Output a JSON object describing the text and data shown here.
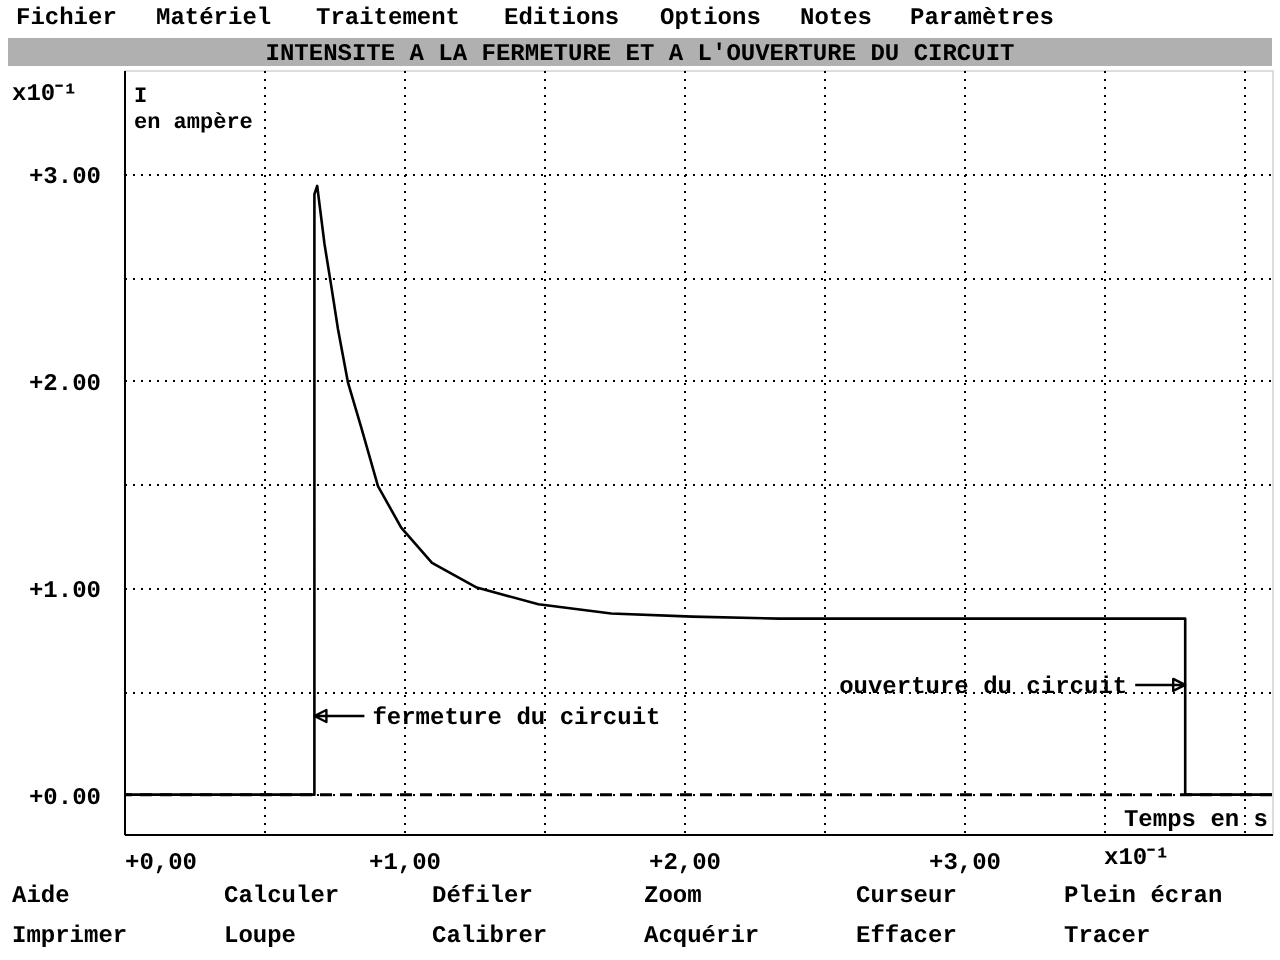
{
  "chart_data": {
    "type": "line",
    "title": "INTENSITE A LA FERMETURE ET A L'OUVERTURE DU CIRCUIT",
    "xlabel": "Temps en s",
    "ylabel": "I\nen ampère",
    "series": [
      {
        "color": "#000000",
        "x": [
          0,
          0.68,
          0.68,
          0.69,
          0.716,
          0.741,
          0.764,
          0.8,
          0.848,
          0.907,
          0.99,
          1.1,
          1.26,
          1.48,
          1.74,
          2.03,
          2.34,
          3.79,
          3.79,
          4.1
        ],
        "values": [
          0,
          0,
          2.9,
          2.94,
          2.66,
          2.45,
          2.25,
          1.99,
          1.77,
          1.49,
          1.29,
          1.12,
          1.0,
          0.92,
          0.875,
          0.86,
          0.85,
          0.85,
          0,
          0
        ]
      }
    ],
    "xlim": [
      0,
      4.1
    ],
    "xticks": [
      {
        "value": 0,
        "label": "+0,00"
      },
      {
        "value": 0.5,
        "label": null
      },
      {
        "value": 1,
        "label": "+1,00"
      },
      {
        "value": 1.5,
        "label": null
      },
      {
        "value": 2,
        "label": "+2,00"
      },
      {
        "value": 2.5,
        "label": null
      },
      {
        "value": 3,
        "label": "+3,00"
      },
      {
        "value": 3.5,
        "label": null
      },
      {
        "value": 4,
        "label": null
      }
    ],
    "ylim": [
      -0.19,
      3.5
    ],
    "yticks": [
      {
        "value": 0,
        "label": "+0.00"
      },
      {
        "value": 0.5,
        "label": null
      },
      {
        "value": 1,
        "label": "+1.00"
      },
      {
        "value": 1.5,
        "label": null
      },
      {
        "value": 2,
        "label": "+2.00"
      },
      {
        "value": 2.5,
        "label": null
      },
      {
        "value": 3,
        "label": "+3.00"
      }
    ],
    "grid": true,
    "marker": "none",
    "line_style": "solid",
    "ref_lines": [
      {
        "axis": "y",
        "value": 0,
        "line_style": "dashed"
      }
    ],
    "annotations": [
      "Fichier",
      "Matériel",
      "Traitement",
      "Editions",
      "Options",
      "Notes",
      "Paramètres",
      "Aide",
      "Calculer",
      "Défiler",
      "Zoom",
      "Curseur",
      "Plein écran",
      "Imprimer",
      "Loupe",
      "Calibrer",
      "Acquérir",
      "Effacer",
      "Tracer",
      "x10⁻¹",
      "x10⁻¹",
      {
        "text": "fermeture du circuit",
        "x": 0.68,
        "y": 0.38
      },
      {
        "text": "ouverture du circuit",
        "x": 3.79,
        "y": 0.53
      }
    ]
  }
}
